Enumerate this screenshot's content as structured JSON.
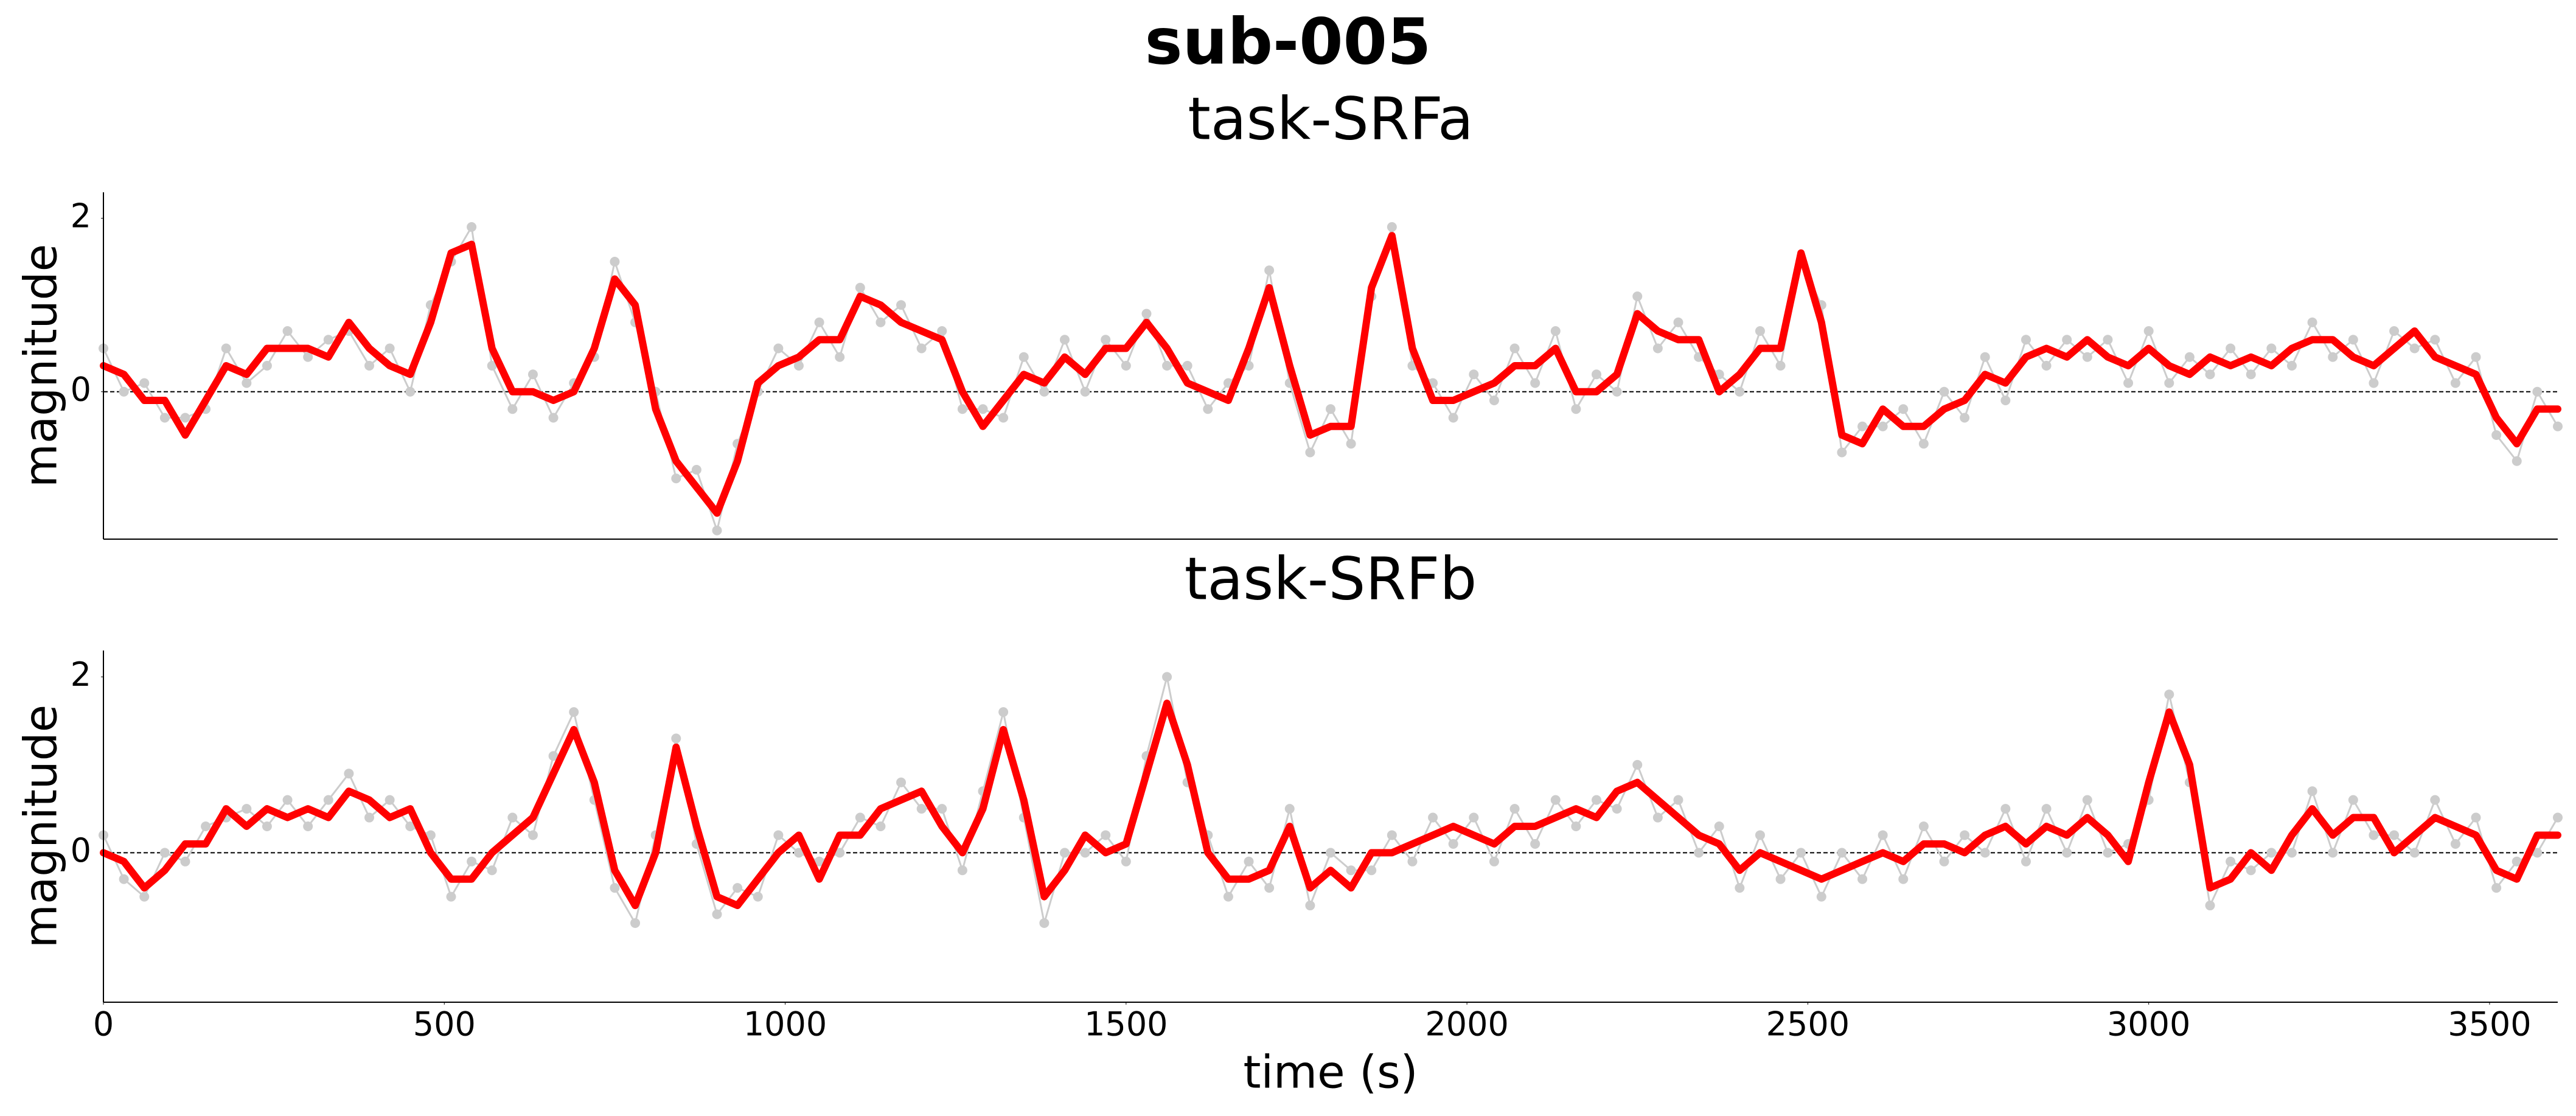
{
  "title": "sub-005",
  "chart_data": [
    {
      "type": "line",
      "title": "task-SRFa",
      "y_label": "magnitude",
      "xlim": [
        0,
        3600
      ],
      "ylim": [
        -1.7,
        2.3
      ],
      "yticks": [
        0,
        2
      ],
      "reference_line": 0,
      "x": [
        0,
        30,
        60,
        90,
        120,
        150,
        180,
        210,
        240,
        270,
        300,
        330,
        360,
        390,
        420,
        450,
        480,
        510,
        540,
        570,
        600,
        630,
        660,
        690,
        720,
        750,
        780,
        810,
        840,
        870,
        900,
        930,
        960,
        990,
        1020,
        1050,
        1080,
        1110,
        1140,
        1170,
        1200,
        1230,
        1260,
        1290,
        1320,
        1350,
        1380,
        1410,
        1440,
        1470,
        1500,
        1530,
        1560,
        1590,
        1620,
        1650,
        1680,
        1710,
        1740,
        1770,
        1800,
        1830,
        1860,
        1890,
        1920,
        1950,
        1980,
        2010,
        2040,
        2070,
        2100,
        2130,
        2160,
        2190,
        2220,
        2250,
        2280,
        2310,
        2340,
        2370,
        2400,
        2430,
        2460,
        2490,
        2520,
        2550,
        2580,
        2610,
        2640,
        2670,
        2700,
        2730,
        2760,
        2790,
        2820,
        2850,
        2880,
        2910,
        2940,
        2970,
        3000,
        3030,
        3060,
        3090,
        3120,
        3150,
        3180,
        3210,
        3240,
        3270,
        3300,
        3330,
        3360,
        3390,
        3420,
        3450,
        3480,
        3510,
        3540,
        3570,
        3600
      ],
      "series": [
        {
          "color": "#cccccc",
          "markers": true,
          "values": [
            0.5,
            0.0,
            0.1,
            -0.3,
            -0.3,
            -0.2,
            0.5,
            0.1,
            0.3,
            0.7,
            0.4,
            0.6,
            0.7,
            0.3,
            0.5,
            0.0,
            1.0,
            1.5,
            1.9,
            0.3,
            -0.2,
            0.2,
            -0.3,
            0.1,
            0.4,
            1.5,
            0.8,
            0.0,
            -1.0,
            -0.9,
            -1.6,
            -0.6,
            0.0,
            0.5,
            0.3,
            0.8,
            0.4,
            1.2,
            0.8,
            1.0,
            0.5,
            0.7,
            -0.2,
            -0.2,
            -0.3,
            0.4,
            0.0,
            0.6,
            0.0,
            0.6,
            0.3,
            0.9,
            0.3,
            0.3,
            -0.2,
            0.1,
            0.3,
            1.4,
            0.1,
            -0.7,
            -0.2,
            -0.6,
            1.1,
            1.9,
            0.3,
            0.1,
            -0.3,
            0.2,
            -0.1,
            0.5,
            0.1,
            0.7,
            -0.2,
            0.2,
            0.0,
            1.1,
            0.5,
            0.8,
            0.4,
            0.2,
            0.0,
            0.7,
            0.3,
            1.5,
            1.0,
            -0.7,
            -0.4,
            -0.4,
            -0.2,
            -0.6,
            0.0,
            -0.3,
            0.4,
            -0.1,
            0.6,
            0.3,
            0.6,
            0.4,
            0.6,
            0.1,
            0.7,
            0.1,
            0.4,
            0.2,
            0.5,
            0.2,
            0.5,
            0.3,
            0.8,
            0.4,
            0.6,
            0.1,
            0.7,
            0.5,
            0.6,
            0.1,
            0.4,
            -0.5,
            -0.8,
            0.0,
            -0.4
          ]
        },
        {
          "color": "#ff0000",
          "markers": false,
          "values": [
            0.3,
            0.2,
            -0.1,
            -0.1,
            -0.5,
            -0.1,
            0.3,
            0.2,
            0.5,
            0.5,
            0.5,
            0.4,
            0.8,
            0.5,
            0.3,
            0.2,
            0.8,
            1.6,
            1.7,
            0.5,
            0.0,
            0.0,
            -0.1,
            0.0,
            0.5,
            1.3,
            1.0,
            -0.2,
            -0.8,
            -1.1,
            -1.4,
            -0.8,
            0.1,
            0.3,
            0.4,
            0.6,
            0.6,
            1.1,
            1.0,
            0.8,
            0.7,
            0.6,
            0.0,
            -0.4,
            -0.1,
            0.2,
            0.1,
            0.4,
            0.2,
            0.5,
            0.5,
            0.8,
            0.5,
            0.1,
            0.0,
            -0.1,
            0.5,
            1.2,
            0.3,
            -0.5,
            -0.4,
            -0.4,
            1.2,
            1.8,
            0.5,
            -0.1,
            -0.1,
            0.0,
            0.1,
            0.3,
            0.3,
            0.5,
            0.0,
            0.0,
            0.2,
            0.9,
            0.7,
            0.6,
            0.6,
            0.0,
            0.2,
            0.5,
            0.5,
            1.6,
            0.8,
            -0.5,
            -0.6,
            -0.2,
            -0.4,
            -0.4,
            -0.2,
            -0.1,
            0.2,
            0.1,
            0.4,
            0.5,
            0.4,
            0.6,
            0.4,
            0.3,
            0.5,
            0.3,
            0.2,
            0.4,
            0.3,
            0.4,
            0.3,
            0.5,
            0.6,
            0.6,
            0.4,
            0.3,
            0.5,
            0.7,
            0.4,
            0.3,
            0.2,
            -0.3,
            -0.6,
            -0.2,
            -0.2
          ]
        }
      ]
    },
    {
      "type": "line",
      "title": "task-SRFb",
      "y_label": "magnitude",
      "x_label": "time (s)",
      "xlim": [
        0,
        3600
      ],
      "ylim": [
        -1.7,
        2.3
      ],
      "yticks": [
        0,
        2
      ],
      "xticks": [
        0,
        500,
        1000,
        1500,
        2000,
        2500,
        3000,
        3500
      ],
      "reference_line": 0,
      "x": [
        0,
        30,
        60,
        90,
        120,
        150,
        180,
        210,
        240,
        270,
        300,
        330,
        360,
        390,
        420,
        450,
        480,
        510,
        540,
        570,
        600,
        630,
        660,
        690,
        720,
        750,
        780,
        810,
        840,
        870,
        900,
        930,
        960,
        990,
        1020,
        1050,
        1080,
        1110,
        1140,
        1170,
        1200,
        1230,
        1260,
        1290,
        1320,
        1350,
        1380,
        1410,
        1440,
        1470,
        1500,
        1530,
        1560,
        1590,
        1620,
        1650,
        1680,
        1710,
        1740,
        1770,
        1800,
        1830,
        1860,
        1890,
        1920,
        1950,
        1980,
        2010,
        2040,
        2070,
        2100,
        2130,
        2160,
        2190,
        2220,
        2250,
        2280,
        2310,
        2340,
        2370,
        2400,
        2430,
        2460,
        2490,
        2520,
        2550,
        2580,
        2610,
        2640,
        2670,
        2700,
        2730,
        2760,
        2790,
        2820,
        2850,
        2880,
        2910,
        2940,
        2970,
        3000,
        3030,
        3060,
        3090,
        3120,
        3150,
        3180,
        3210,
        3240,
        3270,
        3300,
        3330,
        3360,
        3390,
        3420,
        3450,
        3480,
        3510,
        3540,
        3570,
        3600
      ],
      "series": [
        {
          "color": "#cccccc",
          "markers": true,
          "values": [
            0.2,
            -0.3,
            -0.5,
            0.0,
            -0.1,
            0.3,
            0.4,
            0.5,
            0.3,
            0.6,
            0.3,
            0.6,
            0.9,
            0.4,
            0.6,
            0.3,
            0.2,
            -0.5,
            -0.1,
            -0.2,
            0.4,
            0.2,
            1.1,
            1.6,
            0.6,
            -0.4,
            -0.8,
            0.2,
            1.3,
            0.1,
            -0.7,
            -0.4,
            -0.5,
            0.2,
            0.0,
            -0.1,
            0.0,
            0.4,
            0.3,
            0.8,
            0.5,
            0.5,
            -0.2,
            0.7,
            1.6,
            0.4,
            -0.8,
            0.0,
            0.0,
            0.2,
            -0.1,
            1.1,
            2.0,
            0.8,
            0.2,
            -0.5,
            -0.1,
            -0.4,
            0.5,
            -0.6,
            0.0,
            -0.2,
            -0.2,
            0.2,
            -0.1,
            0.4,
            0.1,
            0.4,
            -0.1,
            0.5,
            0.1,
            0.6,
            0.3,
            0.6,
            0.5,
            1.0,
            0.4,
            0.6,
            0.0,
            0.3,
            -0.4,
            0.2,
            -0.3,
            0.0,
            -0.5,
            0.0,
            -0.3,
            0.2,
            -0.3,
            0.3,
            -0.1,
            0.2,
            0.0,
            0.5,
            -0.1,
            0.5,
            0.0,
            0.6,
            0.0,
            0.1,
            0.6,
            1.8,
            0.8,
            -0.6,
            -0.1,
            -0.2,
            0.0,
            0.0,
            0.7,
            0.0,
            0.6,
            0.2,
            0.2,
            0.0,
            0.6,
            0.1,
            0.4,
            -0.4,
            -0.1,
            0.0,
            0.4
          ]
        },
        {
          "color": "#ff0000",
          "markers": false,
          "values": [
            0.0,
            -0.1,
            -0.4,
            -0.2,
            0.1,
            0.1,
            0.5,
            0.3,
            0.5,
            0.4,
            0.5,
            0.4,
            0.7,
            0.6,
            0.4,
            0.5,
            0.0,
            -0.3,
            -0.3,
            0.0,
            0.2,
            0.4,
            0.9,
            1.4,
            0.8,
            -0.2,
            -0.6,
            0.0,
            1.2,
            0.3,
            -0.5,
            -0.6,
            -0.3,
            0.0,
            0.2,
            -0.3,
            0.2,
            0.2,
            0.5,
            0.6,
            0.7,
            0.3,
            0.0,
            0.5,
            1.4,
            0.6,
            -0.5,
            -0.2,
            0.2,
            0.0,
            0.1,
            0.9,
            1.7,
            1.0,
            0.0,
            -0.3,
            -0.3,
            -0.2,
            0.3,
            -0.4,
            -0.2,
            -0.4,
            0.0,
            0.0,
            0.1,
            0.2,
            0.3,
            0.2,
            0.1,
            0.3,
            0.3,
            0.4,
            0.5,
            0.4,
            0.7,
            0.8,
            0.6,
            0.4,
            0.2,
            0.1,
            -0.2,
            0.0,
            -0.1,
            -0.2,
            -0.3,
            -0.2,
            -0.1,
            0.0,
            -0.1,
            0.1,
            0.1,
            0.0,
            0.2,
            0.3,
            0.1,
            0.3,
            0.2,
            0.4,
            0.2,
            -0.1,
            0.8,
            1.6,
            1.0,
            -0.4,
            -0.3,
            0.0,
            -0.2,
            0.2,
            0.5,
            0.2,
            0.4,
            0.4,
            0.0,
            0.2,
            0.4,
            0.3,
            0.2,
            -0.2,
            -0.3,
            0.2,
            0.2
          ]
        }
      ]
    }
  ]
}
